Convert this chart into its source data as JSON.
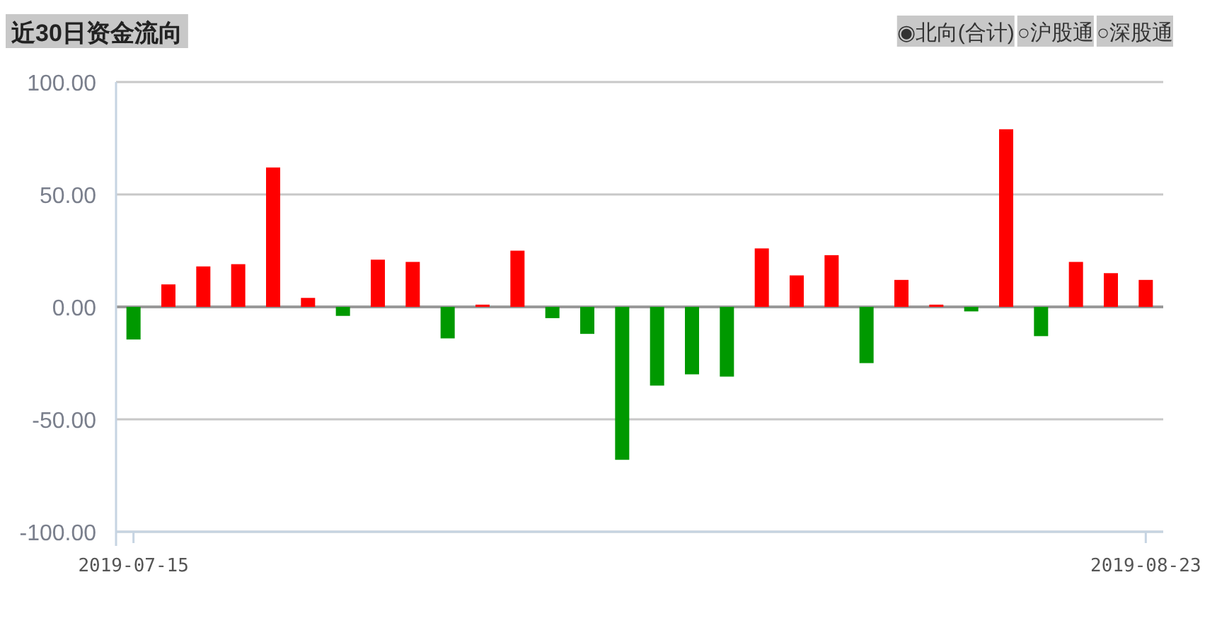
{
  "chart_data": {
    "type": "bar",
    "title": "近30日资金流向",
    "annotations": [
      "◉北向(合计)",
      "○沪股通",
      "○深股通"
    ],
    "categories": [
      "2019-07-15",
      null,
      null,
      null,
      null,
      null,
      null,
      null,
      null,
      null,
      null,
      null,
      null,
      null,
      null,
      null,
      null,
      null,
      null,
      null,
      null,
      null,
      null,
      null,
      null,
      null,
      null,
      null,
      null,
      "2019-08-23"
    ],
    "values": [
      -14.5,
      10,
      18,
      19,
      62,
      4,
      -4,
      21,
      20,
      -14,
      1,
      25,
      -5,
      -12,
      -68,
      -35,
      -30,
      -31,
      26,
      14,
      23,
      -25,
      12,
      1,
      -2,
      79,
      -13,
      20,
      15,
      12
    ],
    "colors": [
      "#009900",
      "#ff0000",
      "#ff0000",
      "#ff0000",
      "#ff0000",
      "#ff0000",
      "#009900",
      "#ff0000",
      "#ff0000",
      "#009900",
      "#ff0000",
      "#ff0000",
      "#009900",
      "#009900",
      "#009900",
      "#009900",
      "#009900",
      "#009900",
      "#ff0000",
      "#ff0000",
      "#ff0000",
      "#009900",
      "#ff0000",
      "#ff0000",
      "#009900",
      "#ff0000",
      "#009900",
      "#ff0000",
      "#ff0000",
      "#ff0000"
    ],
    "ylim": [
      -100,
      100
    ],
    "yticks": [
      {
        "value": -100,
        "label": "-100.00"
      },
      {
        "value": -50,
        "label": "-50.00"
      },
      {
        "value": 0,
        "label": "0.00"
      },
      {
        "value": 50,
        "label": "50.00"
      },
      {
        "value": 100,
        "label": "100.00"
      }
    ],
    "grid": "y"
  }
}
